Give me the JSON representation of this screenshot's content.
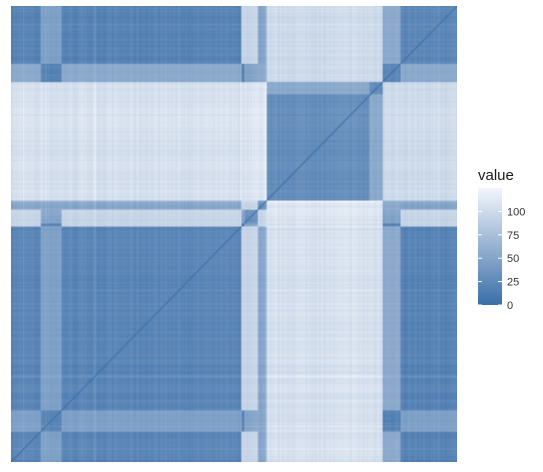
{
  "chart_data": {
    "type": "heatmap",
    "title": "",
    "xlabel": "",
    "ylabel": "",
    "matrix_order": "symmetric distance matrix, 1:1 aspect, diagonal from bottom-left to top-right",
    "color_scale": {
      "low_color": "#3a6ea8",
      "high_color": "#f3f6fb",
      "limits": [
        0,
        125
      ]
    },
    "legend": {
      "title": "value",
      "placement": "right",
      "ticks": [
        0,
        25,
        50,
        75,
        100
      ],
      "tick_labels": [
        "0",
        "25",
        "50",
        "75",
        "100"
      ]
    },
    "blocks": {
      "boundaries": [
        0.0,
        0.525,
        0.575,
        0.835,
        1.0
      ],
      "distance_matrix": [
        [
          22,
          52,
          105,
          20,
          35
        ],
        [
          52,
          35,
          110,
          50,
          62
        ],
        [
          105,
          110,
          30,
          100,
          90
        ],
        [
          20,
          50,
          100,
          24,
          40
        ],
        [
          35,
          62,
          90,
          40,
          30
        ]
      ]
    },
    "highlight_bands": [
      {
        "center": 0.535,
        "width": 0.035,
        "value": 112
      },
      {
        "center": 0.09,
        "width": 0.045,
        "value": 55
      },
      {
        "center": 0.84,
        "width": 0.07,
        "value": 65
      }
    ],
    "diagonal_value": 0
  }
}
